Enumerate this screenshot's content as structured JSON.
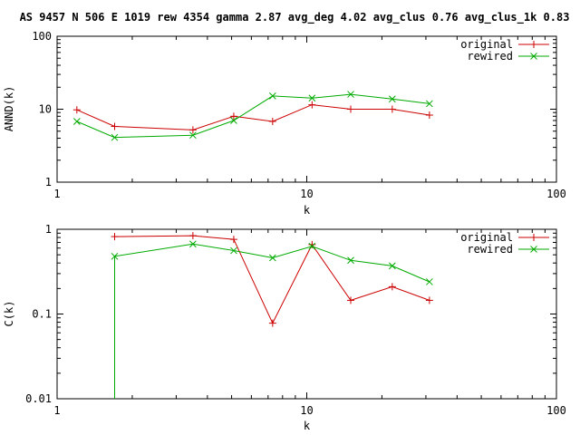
{
  "title": "AS 9457 N 506 E 1019 rew 4354 gamma 2.87 avg_deg 4.02 avg_clus 0.76 avg_clus_1k 0.83",
  "colors": {
    "original": "#cc0000",
    "rewired": "#00aa00",
    "axis": "#000000"
  },
  "chart_data": [
    {
      "type": "line",
      "xscale": "log",
      "yscale": "log",
      "xlim": [
        1,
        100
      ],
      "ylim": [
        1,
        100
      ],
      "xlabel": "k",
      "ylabel": "ANND(k)",
      "xticks": [
        1,
        10,
        100
      ],
      "xtick_labels": [
        "1",
        "10",
        "100"
      ],
      "yticks": [
        1,
        10,
        100
      ],
      "ytick_labels": [
        "1",
        "10",
        "100"
      ],
      "legend_position": "top-right",
      "series": [
        {
          "name": "original",
          "x": [
            1.2,
            1.7,
            3.5,
            5.1,
            7.3,
            10.5,
            15,
            22,
            31
          ],
          "y": [
            9.8,
            5.8,
            5.2,
            8.0,
            6.8,
            11.5,
            10.0,
            10.0,
            8.3
          ]
        },
        {
          "name": "rewired",
          "x": [
            1.2,
            1.7,
            3.5,
            5.1,
            7.3,
            10.5,
            15,
            22,
            31
          ],
          "y": [
            6.8,
            4.1,
            4.4,
            7.0,
            15.2,
            14.2,
            16.0,
            13.8,
            11.9
          ]
        }
      ]
    },
    {
      "type": "line",
      "xscale": "log",
      "yscale": "log",
      "xlim": [
        1,
        100
      ],
      "ylim": [
        0.01,
        1
      ],
      "xlabel": "k",
      "ylabel": "C(k)",
      "xticks": [
        1,
        10,
        100
      ],
      "xtick_labels": [
        "1",
        "10",
        "100"
      ],
      "yticks": [
        0.01,
        0.1,
        1
      ],
      "ytick_labels": [
        "0.01",
        "0.1",
        "1"
      ],
      "legend_position": "top-right",
      "series": [
        {
          "name": "original",
          "x": [
            1.7,
            3.5,
            5.1,
            7.3,
            10.5,
            15,
            22,
            31
          ],
          "y": [
            0.82,
            0.84,
            0.76,
            0.078,
            0.66,
            0.145,
            0.21,
            0.145
          ]
        },
        {
          "name": "rewired",
          "x": [
            1.7,
            1.7,
            3.5,
            5.1,
            7.3,
            10.5,
            15,
            22,
            31
          ],
          "y": [
            0.01,
            0.48,
            0.67,
            0.56,
            0.46,
            0.63,
            0.43,
            0.37,
            0.24
          ]
        }
      ]
    }
  ]
}
